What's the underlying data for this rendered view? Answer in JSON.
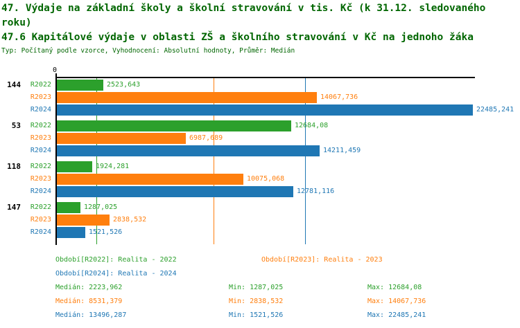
{
  "header": {
    "title": "47. Výdaje na základní školy a školní stravování v tis. Kč (k 31.12. sledovaného roku)",
    "subtitle": "47.6 Kapitálové výdaje v oblasti ZŠ a školního stravování v Kč na jednoho žáka",
    "meta": "Typ: Počítaný podle vzorce, Vyhodnocení: Absolutní hodnoty, Průměr: Medián",
    "title_color": "#006600"
  },
  "chart_data": {
    "type": "bar",
    "orientation": "horizontal",
    "title": "47.6 Kapitálové výdaje v oblasti ZŠ a školního stravování v Kč na jednoho žáka",
    "axis_zero_label": "0",
    "xlim": [
      0,
      22670
    ],
    "grid": "median-lines-per-series",
    "legend_position": "bottom",
    "categories": [
      "144",
      "53",
      "118",
      "147"
    ],
    "series": [
      {
        "name": "R2022",
        "color": "#2ca02c",
        "values": [
          2523.643,
          12684.08,
          1924.281,
          1287.025
        ],
        "value_labels": [
          "2523,643",
          "12684,08",
          "1924,281",
          "1287,025"
        ]
      },
      {
        "name": "R2023",
        "color": "#ff7f0e",
        "values": [
          14067.736,
          6987.689,
          10075.068,
          2838.532
        ],
        "value_labels": [
          "14067,736",
          "6987,689",
          "10075,068",
          "2838,532"
        ]
      },
      {
        "name": "R2024",
        "color": "#1f77b4",
        "values": [
          22485.241,
          14211.459,
          12781.116,
          1521.526
        ],
        "value_labels": [
          "22485,241",
          "14211,459",
          "12781,116",
          "1521,526"
        ]
      }
    ],
    "gridlines": [
      {
        "series": "R2022",
        "stat": "median",
        "value": 2223.962,
        "color": "#2ca02c"
      },
      {
        "series": "R2023",
        "stat": "median",
        "value": 8531.379,
        "color": "#ff7f0e"
      },
      {
        "series": "R2024",
        "stat": "median",
        "value": 13496.287,
        "color": "#1f77b4"
      }
    ],
    "legend": [
      {
        "text": "Období[R2022]: Realita - 2022",
        "color": "#2ca02c"
      },
      {
        "text": "Období[R2023]: Realita - 2023",
        "color": "#ff7f0e"
      },
      {
        "text": "Období[R2024]: Realita - 2024",
        "color": "#1f77b4"
      }
    ],
    "stats": [
      {
        "median": "Medián: 2223,962",
        "min": "Min: 1287,025",
        "max": "Max: 12684,08",
        "color": "#2ca02c"
      },
      {
        "median": "Medián: 8531,379",
        "min": "Min: 2838,532",
        "max": "Max: 14067,736",
        "color": "#ff7f0e"
      },
      {
        "median": "Medián: 13496,287",
        "min": "Min: 1521,526",
        "max": "Max: 22485,241",
        "color": "#1f77b4"
      }
    ]
  }
}
